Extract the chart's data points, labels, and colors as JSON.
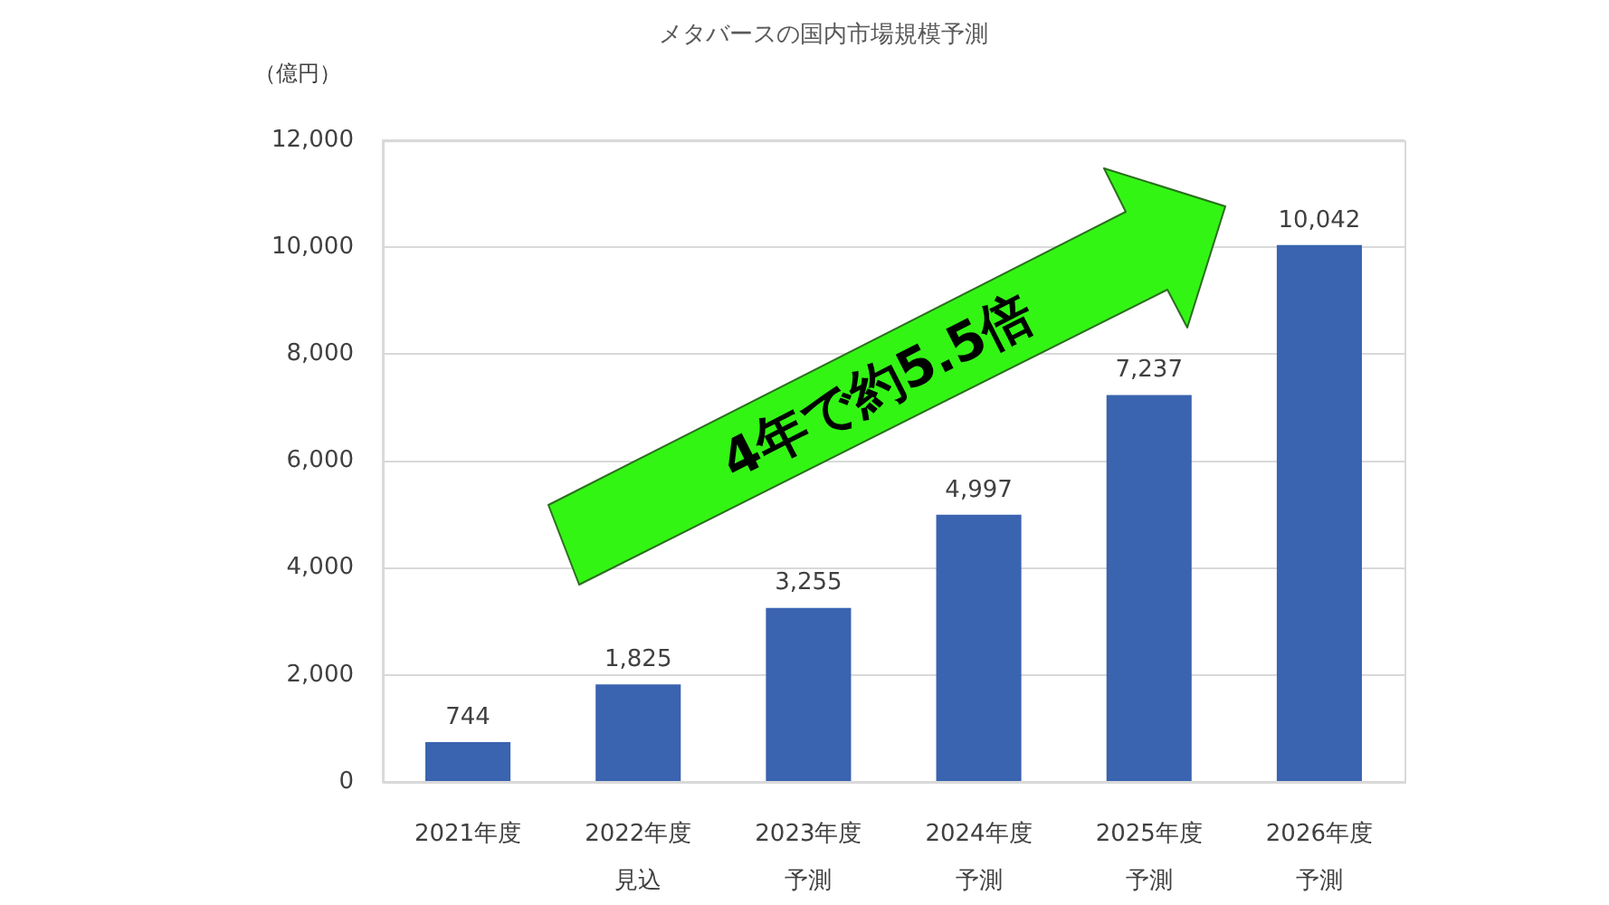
{
  "chart_data": {
    "type": "bar",
    "title": "メタバースの国内市場規模予測",
    "ylabel": "（億円）",
    "categories": [
      "2021年度",
      "2022年度見込",
      "2023年度予測",
      "2024年度予測",
      "2025年度予測",
      "2026年度予測"
    ],
    "values": [
      744,
      1825,
      3255,
      4997,
      7237,
      10042
    ],
    "color": "#3a63b0",
    "value_labels": [
      "744",
      "1,825",
      "3,255",
      "4,997",
      "7,237",
      "10,042"
    ],
    "ylim": [
      0,
      12000
    ],
    "yticks": [
      0,
      {
        "value": 2000,
        "label": "2,000"
      },
      {
        "value": 4000,
        "label": "4,000"
      },
      {
        "value": 6000,
        "label": "6,000"
      },
      {
        "value": 8000,
        "label": "8,000"
      },
      {
        "value": 10000,
        "label": "10,000"
      },
      {
        "value": 12000,
        "label": "12,000"
      }
    ],
    "grid": "y",
    "legend": false,
    "annotations": [
      "4年で約5.5倍"
    ]
  }
}
